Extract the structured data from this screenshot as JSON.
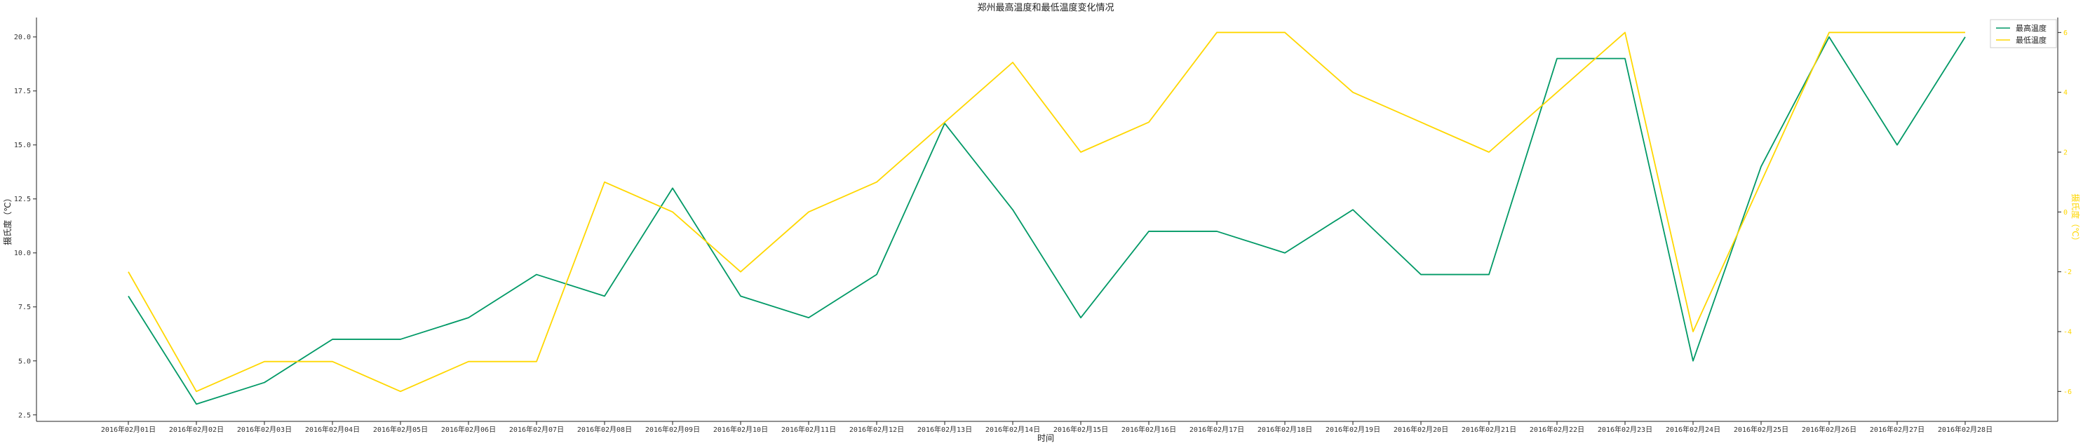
{
  "chart_data": {
    "type": "line",
    "title": "郑州最高温度和最低温度变化情况",
    "xlabel": "时间",
    "ylabel": "摄氏度（℃）",
    "y2label": "摄氏度（℃）",
    "categories": [
      "2016年02月01日",
      "2016年02月02日",
      "2016年02月03日",
      "2016年02月04日",
      "2016年02月05日",
      "2016年02月06日",
      "2016年02月07日",
      "2016年02月08日",
      "2016年02月09日",
      "2016年02月10日",
      "2016年02月11日",
      "2016年02月12日",
      "2016年02月13日",
      "2016年02月14日",
      "2016年02月15日",
      "2016年02月16日",
      "2016年02月17日",
      "2016年02月18日",
      "2016年02月19日",
      "2016年02月20日",
      "2016年02月21日",
      "2016年02月22日",
      "2016年02月23日",
      "2016年02月24日",
      "2016年02月25日",
      "2016年02月26日",
      "2016年02月27日",
      "2016年02月28日"
    ],
    "ylim": [
      2.2,
      20.9
    ],
    "yticks": [
      "2.5",
      "5.0",
      "7.5",
      "10.0",
      "12.5",
      "15.0",
      "17.5",
      "20.0"
    ],
    "y2lim": [
      -7.0,
      6.5
    ],
    "y2ticks": [
      "-6",
      "-4",
      "-2",
      "0",
      "2",
      "4",
      "6"
    ],
    "series": [
      {
        "name": "最高温度",
        "axis": "left",
        "color": "#009966",
        "values": [
          8,
          3,
          4,
          6,
          6,
          7,
          9,
          8,
          13,
          8,
          7,
          9,
          16,
          12,
          7,
          11,
          11,
          10,
          12,
          9,
          9,
          19,
          19,
          5,
          14,
          20,
          15,
          20
        ]
      },
      {
        "name": "最低温度",
        "axis": "right",
        "color": "#FFD700",
        "values": [
          -2,
          -6,
          -5,
          -5,
          -6,
          -5,
          -5,
          1,
          0,
          -2,
          0,
          1,
          3,
          5,
          2,
          3,
          6,
          6,
          4,
          3,
          2,
          4,
          6,
          -4,
          1,
          6,
          6,
          6
        ]
      }
    ],
    "legend": "top-right",
    "grid": false
  }
}
